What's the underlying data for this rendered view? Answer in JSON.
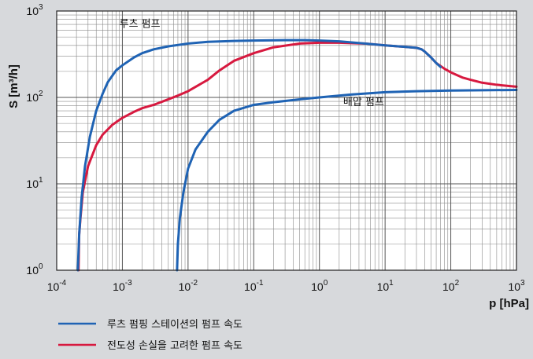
{
  "chart_data": {
    "type": "line",
    "xscale": "log",
    "yscale": "log",
    "xlim": [
      0.0001,
      1000
    ],
    "ylim": [
      1,
      1000
    ],
    "xlabel": "p [hPa]",
    "ylabel": "S [m³/h]",
    "grid": true,
    "x_ticks": [
      {
        "base": "10",
        "exp": "-4"
      },
      {
        "base": "10",
        "exp": "-3"
      },
      {
        "base": "10",
        "exp": "-2"
      },
      {
        "base": "10",
        "exp": "-1"
      },
      {
        "base": "10",
        "exp": "0"
      },
      {
        "base": "10",
        "exp": "1"
      },
      {
        "base": "10",
        "exp": "2"
      },
      {
        "base": "10",
        "exp": "3"
      }
    ],
    "y_ticks": [
      {
        "base": "10",
        "exp": "0"
      },
      {
        "base": "10",
        "exp": "1"
      },
      {
        "base": "10",
        "exp": "2"
      },
      {
        "base": "10",
        "exp": "3"
      }
    ],
    "annotations": [
      {
        "text": "루츠 펌프",
        "x": 0.0009,
        "y": 650
      },
      {
        "text": "배압 펌프",
        "x": 2.3,
        "y": 81
      }
    ],
    "series": [
      {
        "name": "루츠 펌핑 스테이션의 펌프 속도",
        "color": "#1f63b4",
        "points": [
          [
            0.00021,
            1
          ],
          [
            0.00022,
            2.6
          ],
          [
            0.00024,
            7
          ],
          [
            0.00027,
            16
          ],
          [
            0.00032,
            35
          ],
          [
            0.0004,
            70
          ],
          [
            0.0005,
            110
          ],
          [
            0.0006,
            150
          ],
          [
            0.0008,
            205
          ],
          [
            0.001,
            235
          ],
          [
            0.0015,
            290
          ],
          [
            0.002,
            325
          ],
          [
            0.003,
            360
          ],
          [
            0.005,
            390
          ],
          [
            0.01,
            420
          ],
          [
            0.02,
            440
          ],
          [
            0.05,
            450
          ],
          [
            0.1,
            455
          ],
          [
            0.3,
            460
          ],
          [
            0.6,
            460
          ],
          [
            1,
            455
          ],
          [
            2,
            445
          ],
          [
            5,
            420
          ],
          [
            10,
            400
          ],
          [
            20,
            385
          ],
          [
            30,
            375
          ],
          [
            36,
            360
          ],
          [
            40,
            340
          ],
          [
            50,
            290
          ],
          [
            60,
            250
          ],
          [
            70,
            225
          ]
        ]
      },
      {
        "name": "전도성 손실을 고려한 펌프 속도",
        "color": "#d7193f",
        "points": [
          [
            0.000215,
            1
          ],
          [
            0.00022,
            2.6
          ],
          [
            0.00023,
            4
          ],
          [
            0.00025,
            8
          ],
          [
            0.0003,
            16
          ],
          [
            0.0004,
            28
          ],
          [
            0.0005,
            37
          ],
          [
            0.0007,
            48
          ],
          [
            0.001,
            58
          ],
          [
            0.0015,
            68
          ],
          [
            0.002,
            75
          ],
          [
            0.003,
            82
          ],
          [
            0.005,
            95
          ],
          [
            0.007,
            105
          ],
          [
            0.01,
            118
          ],
          [
            0.02,
            160
          ],
          [
            0.03,
            205
          ],
          [
            0.05,
            265
          ],
          [
            0.1,
            325
          ],
          [
            0.2,
            380
          ],
          [
            0.5,
            420
          ],
          [
            1,
            430
          ],
          [
            2,
            430
          ],
          [
            5,
            420
          ],
          [
            10,
            400
          ],
          [
            20,
            385
          ],
          [
            30,
            375
          ],
          [
            36,
            360
          ],
          [
            40,
            340
          ],
          [
            50,
            290
          ],
          [
            60,
            250
          ],
          [
            80,
            215
          ],
          [
            100,
            195
          ],
          [
            150,
            170
          ],
          [
            200,
            160
          ],
          [
            300,
            148
          ],
          [
            500,
            140
          ],
          [
            1000,
            133
          ]
        ]
      },
      {
        "name": "",
        "color": "#1f63b4",
        "points": [
          [
            0.0068,
            1
          ],
          [
            0.007,
            2
          ],
          [
            0.0075,
            4
          ],
          [
            0.0085,
            8
          ],
          [
            0.01,
            15
          ],
          [
            0.013,
            25
          ],
          [
            0.02,
            40
          ],
          [
            0.03,
            55
          ],
          [
            0.05,
            70
          ],
          [
            0.1,
            82
          ],
          [
            0.2,
            88
          ],
          [
            0.5,
            95
          ],
          [
            1,
            100
          ],
          [
            3,
            108
          ],
          [
            10,
            115
          ],
          [
            30,
            118
          ],
          [
            100,
            120
          ],
          [
            300,
            121
          ],
          [
            1000,
            122
          ]
        ]
      }
    ],
    "legend": {
      "placement": "bottom-left",
      "entries": [
        {
          "label": "루츠 펌핑 스테이션의 펌프 속도",
          "color": "#1f63b4"
        },
        {
          "label": "전도성 손실을 고려한 펌프 속도",
          "color": "#d7193f"
        }
      ]
    }
  }
}
